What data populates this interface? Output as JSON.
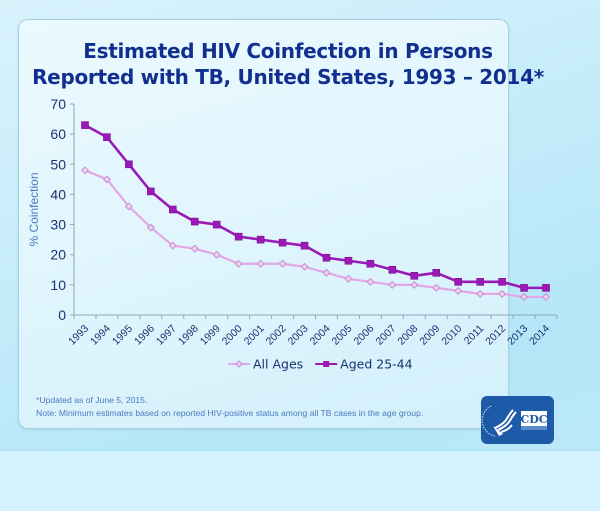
{
  "title_lines": [
    "Estimated HIV Coinfection in Persons",
    "Reported with TB, United States, 1993 – 2014*"
  ],
  "chart_data": {
    "type": "line",
    "title": "Estimated HIV Coinfection in Persons Reported with TB, United States, 1993 – 2014*",
    "xlabel": "",
    "ylabel": "% Coinfection",
    "ylim": [
      0,
      70
    ],
    "yticks": [
      0,
      10,
      20,
      30,
      40,
      50,
      60,
      70
    ],
    "grid": false,
    "legend_position": "bottom-center",
    "categories": [
      "1993",
      "1994",
      "1995",
      "1996",
      "1997",
      "1998",
      "1999",
      "2000",
      "2001",
      "2002",
      "2003",
      "2004",
      "2005",
      "2006",
      "2007",
      "2008",
      "2009",
      "2010",
      "2011",
      "2012",
      "2013",
      "2014"
    ],
    "series": [
      {
        "name": "All Ages",
        "marker": "diamond",
        "color": "#e3a6e6",
        "marker_color": "#c98bd0",
        "values": [
          48,
          45,
          36,
          29,
          23,
          22,
          20,
          17,
          17,
          17,
          16,
          14,
          12,
          11,
          10,
          10,
          9,
          8,
          7,
          7,
          6,
          6
        ]
      },
      {
        "name": "Aged 25-44",
        "marker": "square",
        "color": "#9a19b7",
        "marker_color": "#9a19b7",
        "values": [
          63,
          59,
          50,
          41,
          35,
          31,
          30,
          26,
          25,
          24,
          23,
          19,
          18,
          17,
          15,
          13,
          14,
          11,
          11,
          11,
          9,
          9
        ]
      }
    ]
  },
  "notes": [
    "*Updated as of June 5, 2015.",
    "Note: Minimum estimates based on reported HIV-positive status among all TB cases in the age group."
  ],
  "logo": {
    "name": "CDC",
    "text": "CDC",
    "color": "#1d5aa8"
  },
  "colors": {
    "title": "#102f8e",
    "axis_text": "#1b3270",
    "ylabel": "#4d78c0",
    "axis_line": "#8fa8b4"
  }
}
